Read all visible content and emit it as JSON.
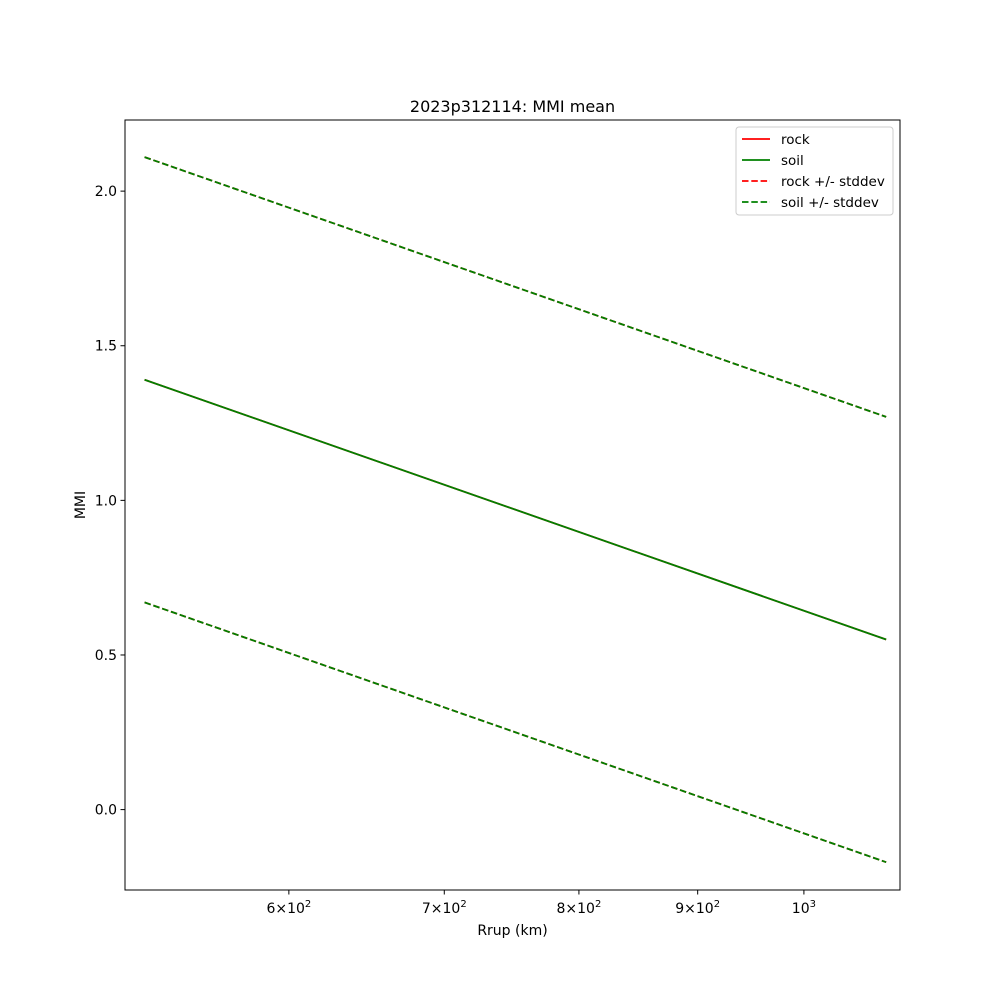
{
  "chart_data": {
    "type": "line",
    "title": "2023p312114: MMI mean",
    "xlabel": "Rrup (km)",
    "ylabel": "MMI",
    "x_scale": "log",
    "xlim": [
      510,
      1100
    ],
    "ylim": [
      -0.26,
      2.23
    ],
    "grid": false,
    "legend_position": "top-right",
    "x_ticks": [
      {
        "value": 600,
        "base": "6×10",
        "exp": "2"
      },
      {
        "value": 700,
        "base": "7×10",
        "exp": "2"
      },
      {
        "value": 800,
        "base": "8×10",
        "exp": "2"
      },
      {
        "value": 900,
        "base": "9×10",
        "exp": "2"
      },
      {
        "value": 1000,
        "base": "10",
        "exp": "3"
      }
    ],
    "y_ticks": [
      {
        "value": 0.0,
        "label": "0.0"
      },
      {
        "value": 0.5,
        "label": "0.5"
      },
      {
        "value": 1.0,
        "label": "1.0"
      },
      {
        "value": 1.5,
        "label": "1.5"
      },
      {
        "value": 2.0,
        "label": "2.0"
      }
    ],
    "series": [
      {
        "name": "rock",
        "style": "solid",
        "color": "#ff0000",
        "x": [
          520,
          1085
        ],
        "y": [
          1.39,
          0.55
        ]
      },
      {
        "name": "soil",
        "style": "solid",
        "color": "#008000",
        "x": [
          520,
          1085
        ],
        "y": [
          1.39,
          0.55
        ]
      },
      {
        "name": "rock +/- stddev",
        "style": "dashed",
        "color": "#ff0000",
        "x": [
          520,
          1085
        ],
        "y": [
          2.11,
          1.27
        ]
      },
      {
        "name": "",
        "style": "dashed",
        "color": "#ff0000",
        "x": [
          520,
          1085
        ],
        "y": [
          0.67,
          -0.17
        ]
      },
      {
        "name": "soil +/- stddev",
        "style": "dashed",
        "color": "#008000",
        "x": [
          520,
          1085
        ],
        "y": [
          2.11,
          1.27
        ]
      },
      {
        "name": "",
        "style": "dashed",
        "color": "#008000",
        "x": [
          520,
          1085
        ],
        "y": [
          0.67,
          -0.17
        ]
      }
    ],
    "legend": [
      {
        "label": "rock",
        "color": "#ff0000",
        "style": "solid"
      },
      {
        "label": "soil",
        "color": "#008000",
        "style": "solid"
      },
      {
        "label": "rock +/- stddev",
        "color": "#ff0000",
        "style": "dashed"
      },
      {
        "label": "soil +/- stddev",
        "color": "#008000",
        "style": "dashed"
      }
    ]
  }
}
